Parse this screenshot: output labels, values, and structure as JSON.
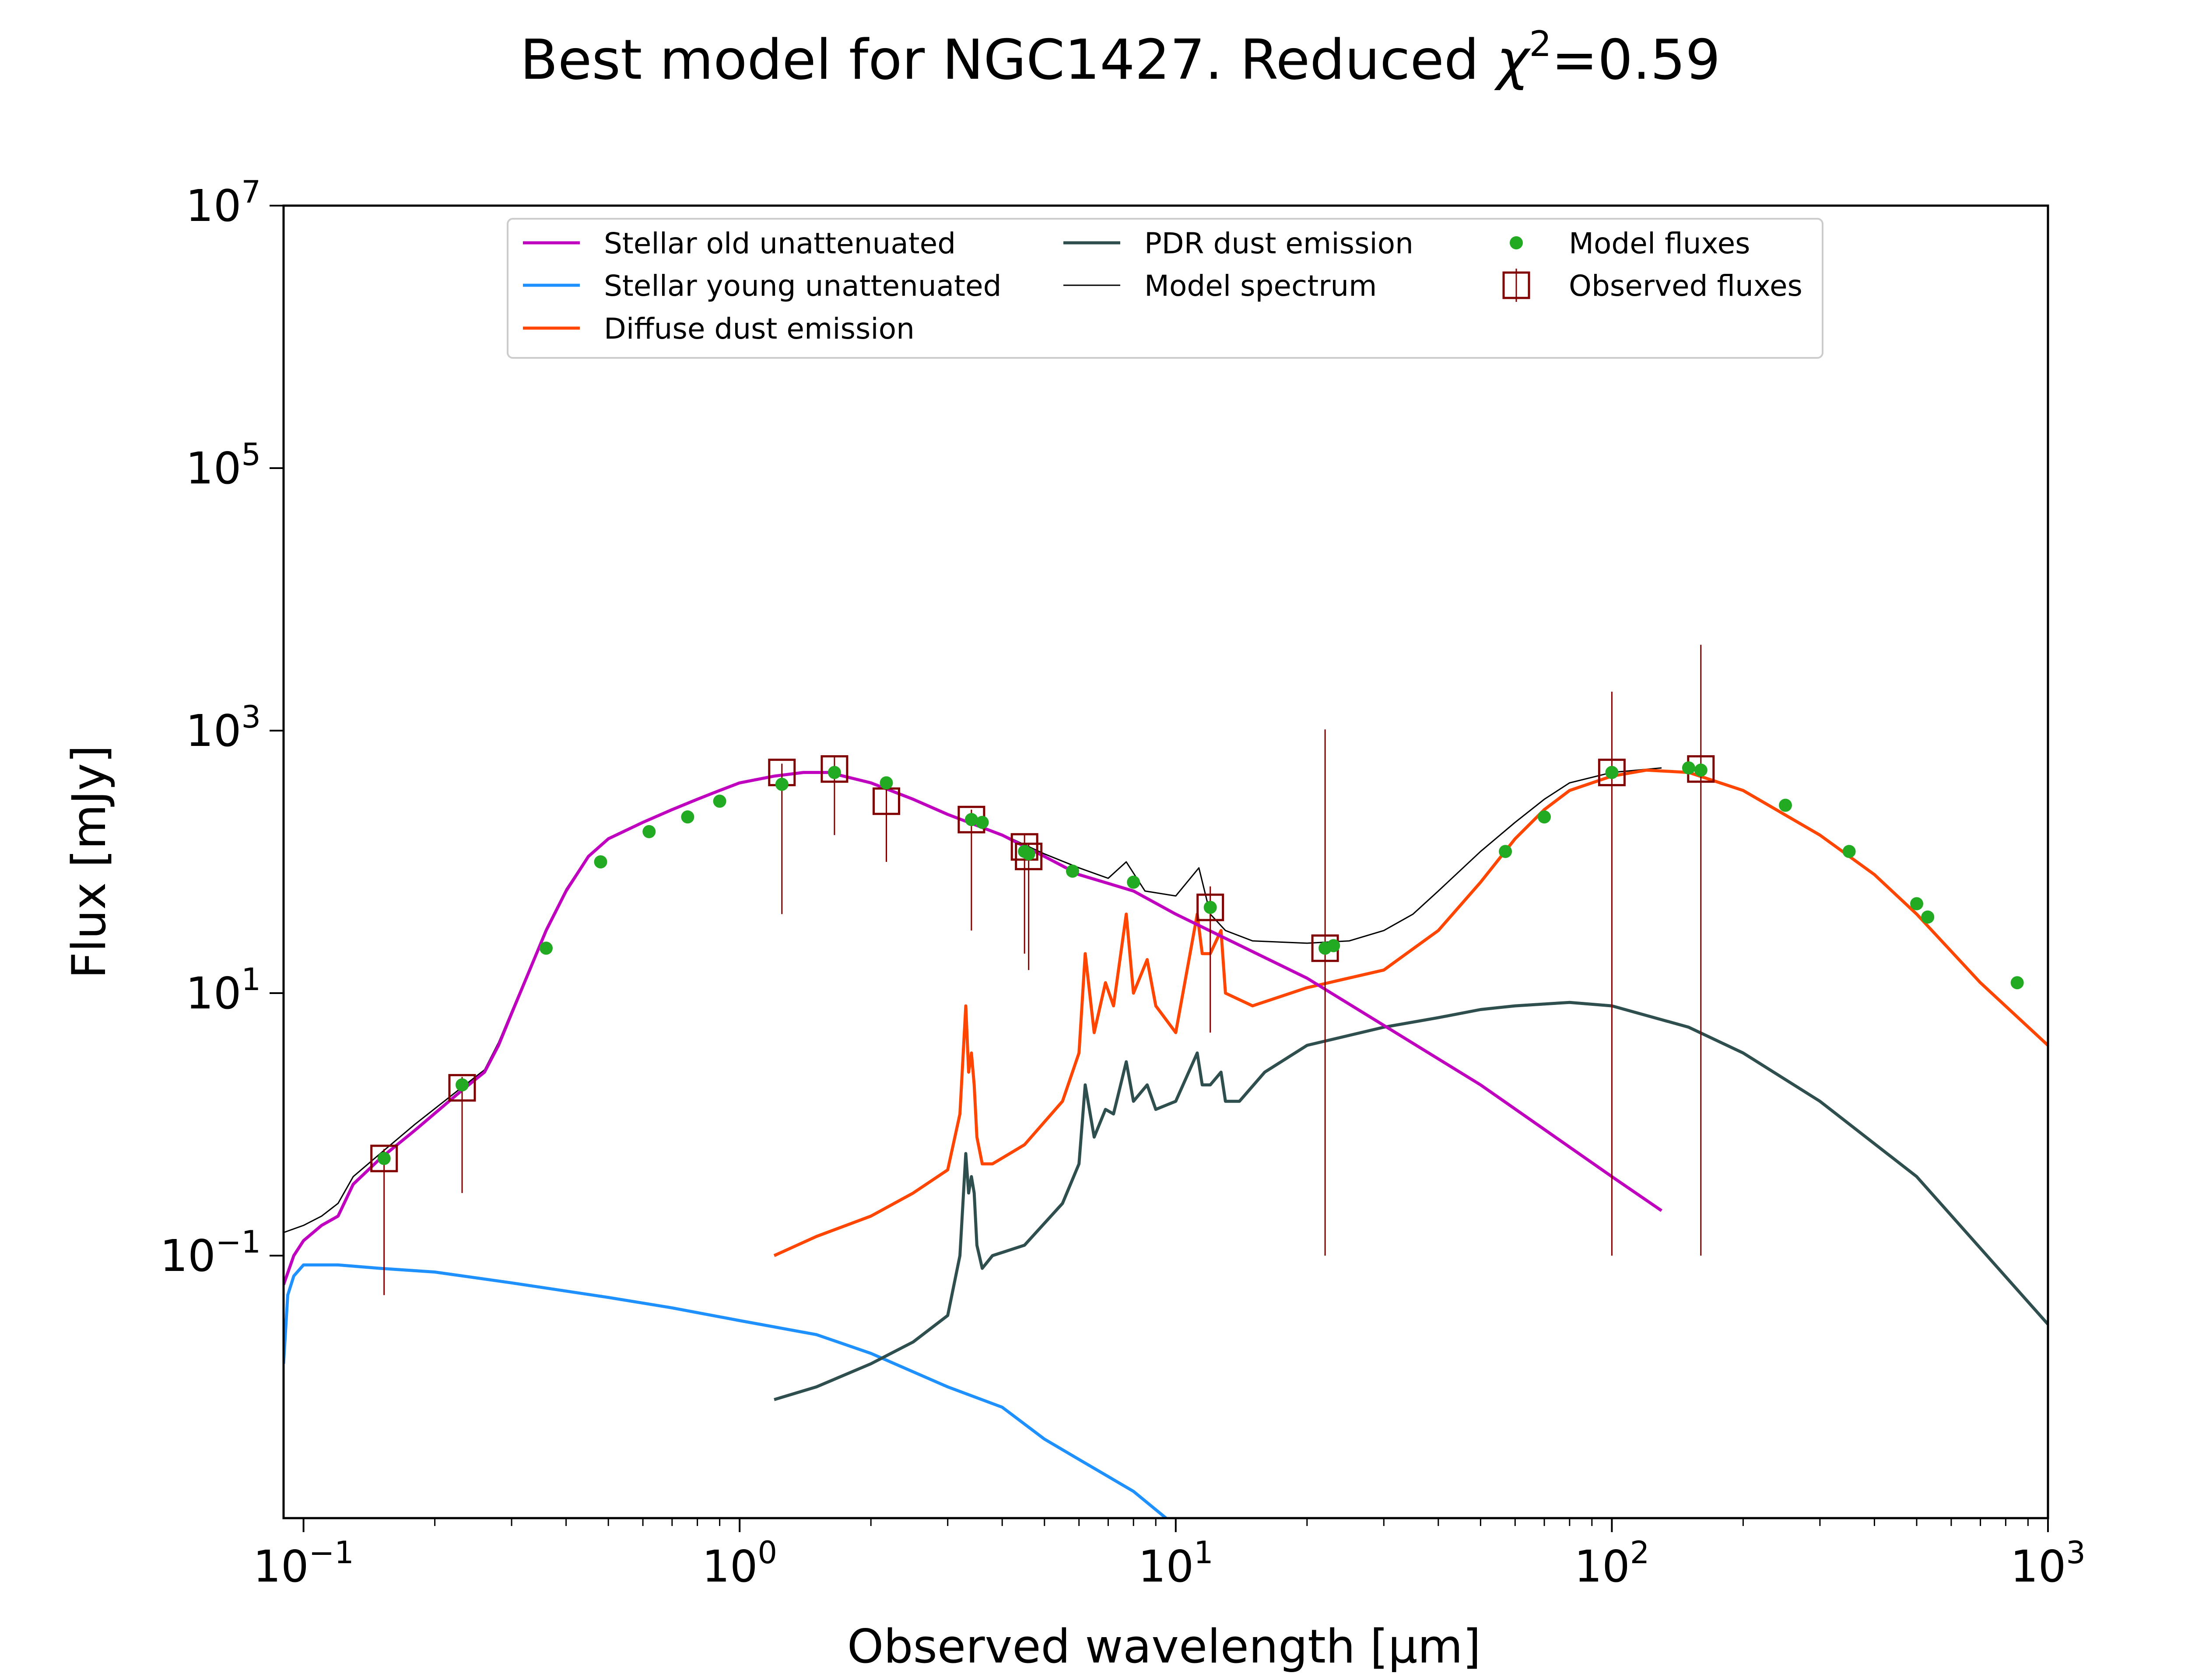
{
  "chart_data": {
    "type": "line",
    "title": "Best model for NGC1427. Reduced χ²=0.59",
    "title_parts": {
      "main": "Best model for NGC1427. Reduced ",
      "chi": "χ",
      "sup": "2",
      "value": "=0.59"
    },
    "xlabel": "Observed wavelength [μm]",
    "ylabel": "Flux [mJy]",
    "xscale": "log",
    "yscale": "log",
    "xlim": [
      0.09,
      1000
    ],
    "ylim": [
      0.001,
      10000000
    ],
    "xticks": [
      {
        "value": 0.1,
        "base": "10",
        "exp": "−1"
      },
      {
        "value": 1,
        "base": "10",
        "exp": "0"
      },
      {
        "value": 10,
        "base": "10",
        "exp": "1"
      },
      {
        "value": 100,
        "base": "10",
        "exp": "2"
      },
      {
        "value": 1000,
        "base": "10",
        "exp": "3"
      }
    ],
    "yticks": [
      {
        "value": 0.1,
        "base": "10",
        "exp": "−1"
      },
      {
        "value": 10,
        "base": "10",
        "exp": "1"
      },
      {
        "value": 1000,
        "base": "10",
        "exp": "3"
      },
      {
        "value": 100000,
        "base": "10",
        "exp": "5"
      },
      {
        "value": 10000000,
        "base": "10",
        "exp": "7"
      }
    ],
    "grid": false,
    "legend_position": "top-center",
    "legend": [
      {
        "label": "Stellar old unattenuated",
        "series": "stellar_old"
      },
      {
        "label": "Stellar young unattenuated",
        "series": "stellar_young"
      },
      {
        "label": "Diffuse dust emission",
        "series": "diffuse_dust"
      },
      {
        "label": "PDR dust emission",
        "series": "pdr_dust"
      },
      {
        "label": "Model spectrum",
        "series": "model_spectrum"
      },
      {
        "label": "Model fluxes",
        "series": "model_fluxes"
      },
      {
        "label": "Observed fluxes",
        "series": "observed_fluxes"
      }
    ],
    "series": [
      {
        "key": "stellar_old",
        "name": "Stellar old unattenuated",
        "color": "#bf00bf",
        "kind": "line",
        "x": [
          0.09,
          0.095,
          0.1,
          0.11,
          0.12,
          0.13,
          0.15,
          0.18,
          0.23,
          0.26,
          0.28,
          0.3,
          0.33,
          0.36,
          0.4,
          0.45,
          0.5,
          0.6,
          0.7,
          0.8,
          0.9,
          1.0,
          1.2,
          1.4,
          1.6,
          2.0,
          2.5,
          3.0,
          4.0,
          5.0,
          6.0,
          8.0,
          10,
          20,
          50,
          100,
          130
        ],
        "y": [
          0.06,
          0.1,
          0.13,
          0.17,
          0.2,
          0.35,
          0.55,
          0.9,
          1.8,
          2.5,
          4.0,
          7.0,
          15.0,
          30.0,
          60.0,
          110.0,
          150.0,
          200.0,
          250.0,
          300.0,
          350.0,
          400.0,
          450.0,
          480.0,
          480.0,
          400.0,
          300.0,
          230.0,
          160.0,
          110.0,
          80.0,
          60.0,
          40.0,
          13.0,
          2.0,
          0.4,
          0.22
        ]
      },
      {
        "key": "stellar_young",
        "name": "Stellar young unattenuated",
        "color": "#1e90ff",
        "kind": "line",
        "x": [
          0.09,
          0.092,
          0.095,
          0.1,
          0.12,
          0.15,
          0.2,
          0.3,
          0.5,
          0.7,
          1.0,
          1.5,
          2.0,
          3.0,
          4.0,
          5.0,
          6.0,
          8.0,
          9.5
        ],
        "y": [
          0.015,
          0.05,
          0.07,
          0.085,
          0.085,
          0.08,
          0.075,
          0.062,
          0.048,
          0.04,
          0.032,
          0.025,
          0.018,
          0.01,
          0.007,
          0.004,
          0.0028,
          0.0016,
          0.001
        ]
      },
      {
        "key": "diffuse_dust",
        "name": "Diffuse dust emission",
        "color": "#ff4500",
        "kind": "line",
        "x": [
          1.2,
          1.5,
          2.0,
          2.5,
          3.0,
          3.2,
          3.3,
          3.35,
          3.4,
          3.45,
          3.5,
          3.6,
          3.8,
          4.5,
          5.5,
          6.0,
          6.2,
          6.5,
          6.9,
          7.2,
          7.7,
          8.0,
          8.6,
          9.0,
          10.0,
          11.2,
          11.5,
          12.0,
          12.7,
          13.0,
          15.0,
          20.0,
          30.0,
          40.0,
          50.0,
          60.0,
          70.0,
          80.0,
          100.0,
          120.0,
          150.0,
          200.0,
          300.0,
          400.0,
          500.0,
          700.0,
          1000.0
        ],
        "y": [
          0.1,
          0.14,
          0.2,
          0.3,
          0.45,
          1.2,
          8.0,
          2.5,
          3.5,
          2.0,
          0.8,
          0.5,
          0.5,
          0.7,
          1.5,
          3.5,
          20.0,
          5.0,
          12.0,
          8.0,
          40.0,
          10.0,
          18.0,
          8.0,
          5.0,
          40.0,
          20.0,
          20.0,
          30.0,
          10.0,
          8.0,
          11.0,
          15.0,
          30.0,
          70.0,
          150.0,
          250.0,
          350.0,
          450.0,
          500.0,
          480.0,
          350.0,
          160.0,
          80.0,
          40.0,
          12.0,
          4.0
        ]
      },
      {
        "key": "pdr_dust",
        "name": "PDR dust emission",
        "color": "#2f4f4f",
        "kind": "line",
        "x": [
          1.2,
          1.5,
          2.0,
          2.5,
          3.0,
          3.2,
          3.3,
          3.35,
          3.4,
          3.45,
          3.5,
          3.6,
          3.8,
          4.5,
          5.5,
          6.0,
          6.2,
          6.5,
          6.9,
          7.2,
          7.7,
          8.0,
          8.6,
          9.0,
          10.0,
          11.2,
          11.5,
          12.0,
          12.7,
          13.0,
          14.0,
          16.0,
          20.0,
          30.0,
          40.0,
          50.0,
          60.0,
          80.0,
          100.0,
          150.0,
          200.0,
          300.0,
          500.0,
          1000.0
        ],
        "y": [
          0.008,
          0.01,
          0.015,
          0.022,
          0.035,
          0.1,
          0.6,
          0.3,
          0.4,
          0.3,
          0.12,
          0.08,
          0.1,
          0.12,
          0.25,
          0.5,
          2.0,
          0.8,
          1.3,
          1.2,
          3.0,
          1.5,
          2.0,
          1.3,
          1.5,
          3.5,
          2.0,
          2.0,
          2.5,
          1.5,
          1.5,
          2.5,
          4.0,
          5.5,
          6.5,
          7.5,
          8.0,
          8.5,
          8.0,
          5.5,
          3.5,
          1.5,
          0.4,
          0.03
        ]
      },
      {
        "key": "model_spectrum",
        "name": "Model spectrum",
        "color": "#000000",
        "kind": "line",
        "x": [
          0.09,
          0.1,
          0.11,
          0.12,
          0.13,
          0.15,
          0.18,
          0.23,
          0.26,
          0.28,
          0.3,
          0.33,
          0.36,
          0.4,
          0.45,
          0.5,
          0.6,
          0.7,
          0.8,
          0.9,
          1.0,
          1.2,
          1.4,
          1.6,
          2.0,
          2.5,
          3.0,
          4.0,
          5.0,
          6.0,
          7.0,
          7.7,
          8.5,
          10.0,
          11.3,
          12.0,
          13.0,
          15.0,
          20.0,
          25.0,
          30.0,
          35.0,
          40.0,
          50.0,
          60.0,
          70.0,
          80.0,
          100.0,
          130.0
        ],
        "y": [
          0.15,
          0.17,
          0.2,
          0.25,
          0.4,
          0.6,
          1.0,
          1.9,
          2.6,
          4.2,
          7.3,
          15.5,
          31.0,
          62.0,
          112.0,
          152.0,
          202.0,
          252.0,
          302.0,
          352.0,
          402.0,
          452.0,
          482.0,
          482.0,
          402.0,
          302.0,
          232.0,
          162.0,
          115.0,
          90.0,
          75.0,
          100.0,
          60.0,
          55.0,
          90.0,
          40.0,
          30.0,
          25.0,
          24.0,
          25.0,
          30.0,
          40.0,
          60.0,
          120.0,
          200.0,
          300.0,
          400.0,
          480.0,
          520.0
        ]
      },
      {
        "key": "model_fluxes",
        "name": "Model fluxes",
        "color": "#22aa22",
        "kind": "scatter",
        "x": [
          0.153,
          0.231,
          0.36,
          0.48,
          0.62,
          0.76,
          0.9,
          1.25,
          1.65,
          2.17,
          3.4,
          3.6,
          4.5,
          4.6,
          5.8,
          8.0,
          12.0,
          22.0,
          23.0,
          57.0,
          70.0,
          100.0,
          150.0,
          160.0,
          250.0,
          350.0,
          500.0,
          530.0,
          850.0
        ],
        "y": [
          0.55,
          2.0,
          22.0,
          100.0,
          170.0,
          220.0,
          290.0,
          390.0,
          480.0,
          400.0,
          210.0,
          200.0,
          120.0,
          115.0,
          85.0,
          70.0,
          45.0,
          22.0,
          23.0,
          120.0,
          220.0,
          480.0,
          520.0,
          500.0,
          270.0,
          120.0,
          48.0,
          38.0,
          12.0
        ]
      },
      {
        "key": "observed_fluxes",
        "name": "Observed fluxes",
        "color": "#800000",
        "kind": "errorbar",
        "x": [
          0.153,
          0.231,
          1.25,
          1.65,
          2.17,
          3.4,
          4.5,
          4.6,
          12.0,
          22.0,
          100.0,
          160.0
        ],
        "y": [
          0.55,
          1.9,
          480.0,
          510.0,
          290.0,
          210.0,
          130.0,
          110.0,
          45.0,
          22.0,
          480.0,
          510.0
        ],
        "yerr_low": [
          0.5,
          1.6,
          440.0,
          350.0,
          190.0,
          180.0,
          110.0,
          95.0,
          40.0,
          21.9,
          479.9,
          509.9
        ],
        "yerr_high": [
          0.1,
          0.4,
          80.0,
          120.0,
          100.0,
          40.0,
          30.0,
          25.0,
          20.0,
          1000.0,
          1500.0,
          4000.0
        ]
      }
    ]
  }
}
